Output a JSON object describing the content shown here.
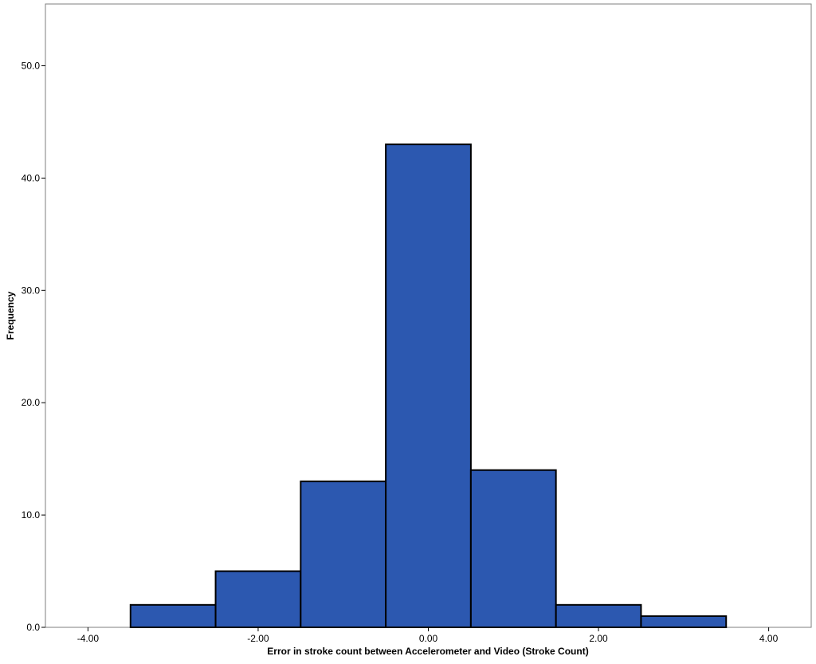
{
  "chart_data": {
    "type": "bar",
    "subtype": "histogram",
    "title": "",
    "xlabel": "Error in stroke count between Accelerometer and Video (Stroke Count)",
    "ylabel": "Frequency",
    "bins": [
      {
        "x0": -3.5,
        "x1": -2.5,
        "count": 2
      },
      {
        "x0": -2.5,
        "x1": -1.5,
        "count": 5
      },
      {
        "x0": -1.5,
        "x1": -0.5,
        "count": 13
      },
      {
        "x0": -0.5,
        "x1": 0.5,
        "count": 43
      },
      {
        "x0": 0.5,
        "x1": 1.5,
        "count": 14
      },
      {
        "x0": 1.5,
        "x1": 2.5,
        "count": 2
      },
      {
        "x0": 2.5,
        "x1": 3.5,
        "count": 1
      }
    ],
    "xlim": [
      -4.5,
      4.5
    ],
    "ylim": [
      0,
      55.5
    ],
    "xticks": [
      {
        "value": -4,
        "label": "-4.00"
      },
      {
        "value": -2,
        "label": "-2.00"
      },
      {
        "value": 0,
        "label": "0.00"
      },
      {
        "value": 2,
        "label": "2.00"
      },
      {
        "value": 4,
        "label": "4.00"
      }
    ],
    "yticks": [
      {
        "value": 0,
        "label": "0.0"
      },
      {
        "value": 10,
        "label": "10.0"
      },
      {
        "value": 20,
        "label": "20.0"
      },
      {
        "value": 30,
        "label": "30.0"
      },
      {
        "value": 40,
        "label": "40.0"
      },
      {
        "value": 50,
        "label": "50.0"
      }
    ],
    "bar_color": "#2c58b0",
    "bar_edge_color": "#000000",
    "grid": false,
    "legend": "none"
  }
}
